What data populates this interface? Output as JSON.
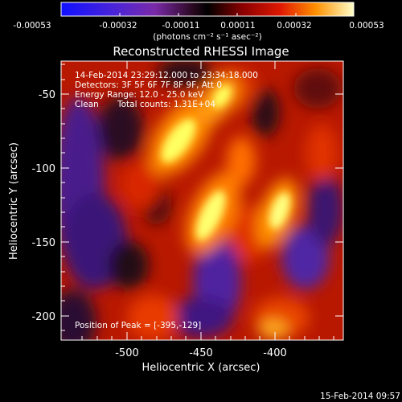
{
  "colorbar": {
    "ticks": [
      "-0.00053",
      "-0.00032",
      "-0.00011",
      "0.00011",
      "0.00032",
      "0.00053"
    ],
    "units": "(photons cm⁻² s⁻¹ asec⁻²)"
  },
  "title": "Reconstructed RHESSI Image",
  "info": {
    "time_range": "14-Feb-2014 23:29:12.000 to 23:34:18.000",
    "detectors": "Detectors: 3F 5F 6F 7F 8F 9F, Att 0",
    "energy_range": "Energy Range: 12.0 - 25.0 keV",
    "algorithm": "Clean",
    "total_counts": "Total counts: 1.31E+04",
    "peak_position": "Position of Peak = [-395,-129]"
  },
  "axes": {
    "xlabel": "Heliocentric X (arcsec)",
    "ylabel": "Heliocentric Y (arcsec)",
    "xticks": [
      "-500",
      "-450",
      "-400"
    ],
    "yticks": [
      "-50",
      "-100",
      "-150",
      "-200"
    ]
  },
  "footer": {
    "date": "15-Feb-2014 09:57"
  }
}
